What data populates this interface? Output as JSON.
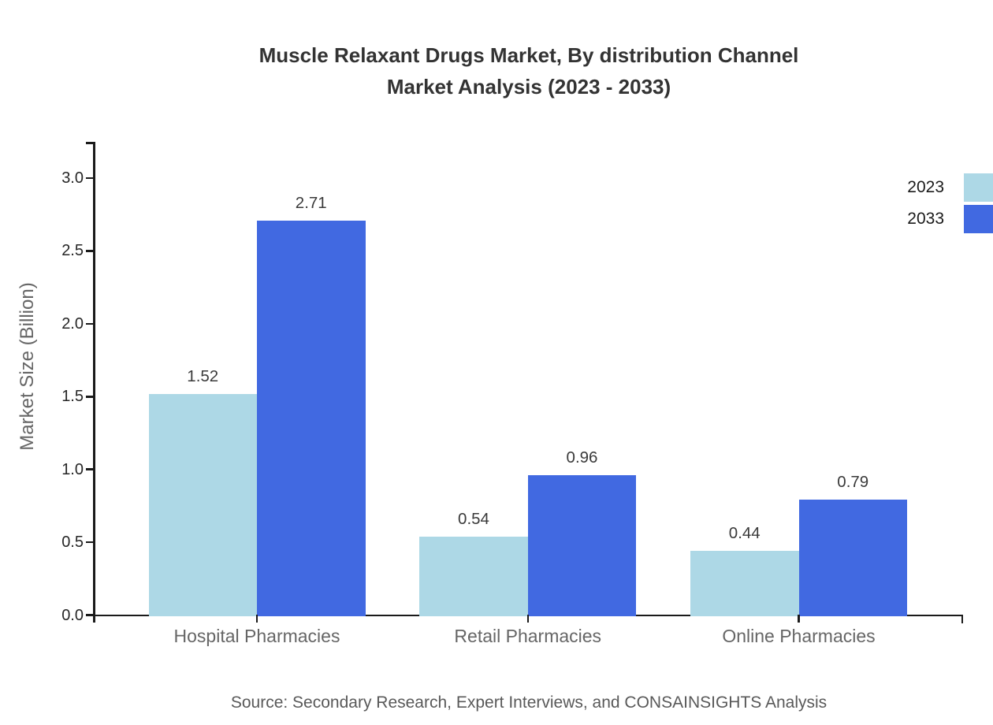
{
  "figure": {
    "title_lines": [
      "Muscle Relaxant Drugs Market, By distribution Channel",
      "Market Analysis (2023 - 2033)"
    ],
    "y_axis_title": "Market Size (Billion)",
    "source_note": "Source: Secondary Research, Expert Interviews, and CONSAINSIGHTS Analysis"
  },
  "colors": {
    "series_2023": "#ADD8E6",
    "series_2033": "#4169E1",
    "axis_line": "#1A1A1A",
    "title_text": "#333333",
    "tick_label_text": "#262626",
    "category_label_text": "#666666",
    "value_label_text": "#3A3A3A",
    "source_text": "#595959"
  },
  "legend": {
    "position": "outside-upper-right",
    "entries": [
      {
        "label": "2023",
        "color": "#ADD8E6"
      },
      {
        "label": "2033",
        "color": "#4169E1"
      }
    ]
  },
  "chart_data": {
    "type": "bar",
    "title": "Muscle Relaxant Drugs Market, By distribution Channel Market Analysis (2023 - 2033)",
    "xlabel": "",
    "ylabel": "Market Size (Billion)",
    "categories": [
      "Hospital Pharmacies",
      "Retail Pharmacies",
      "Online Pharmacies"
    ],
    "series": [
      {
        "name": "2023",
        "color": "#ADD8E6",
        "values": [
          1.52,
          0.54,
          0.44
        ],
        "labels": [
          "1.52",
          "0.54",
          "0.44"
        ]
      },
      {
        "name": "2033",
        "color": "#4169E1",
        "values": [
          2.71,
          0.96,
          0.79
        ],
        "labels": [
          "2.71",
          "0.96",
          "0.79"
        ]
      }
    ],
    "ylim": [
      0,
      3.26
    ],
    "yticks": [
      0,
      0.5,
      1,
      1.5,
      2,
      2.5,
      3
    ],
    "ytick_labels": [
      "0.0",
      "0.5",
      "1.0",
      "1.5",
      "2.0",
      "2.5",
      "3.0"
    ],
    "grid": false,
    "bar_value_labels": true,
    "legend_position": "outside upper right"
  }
}
